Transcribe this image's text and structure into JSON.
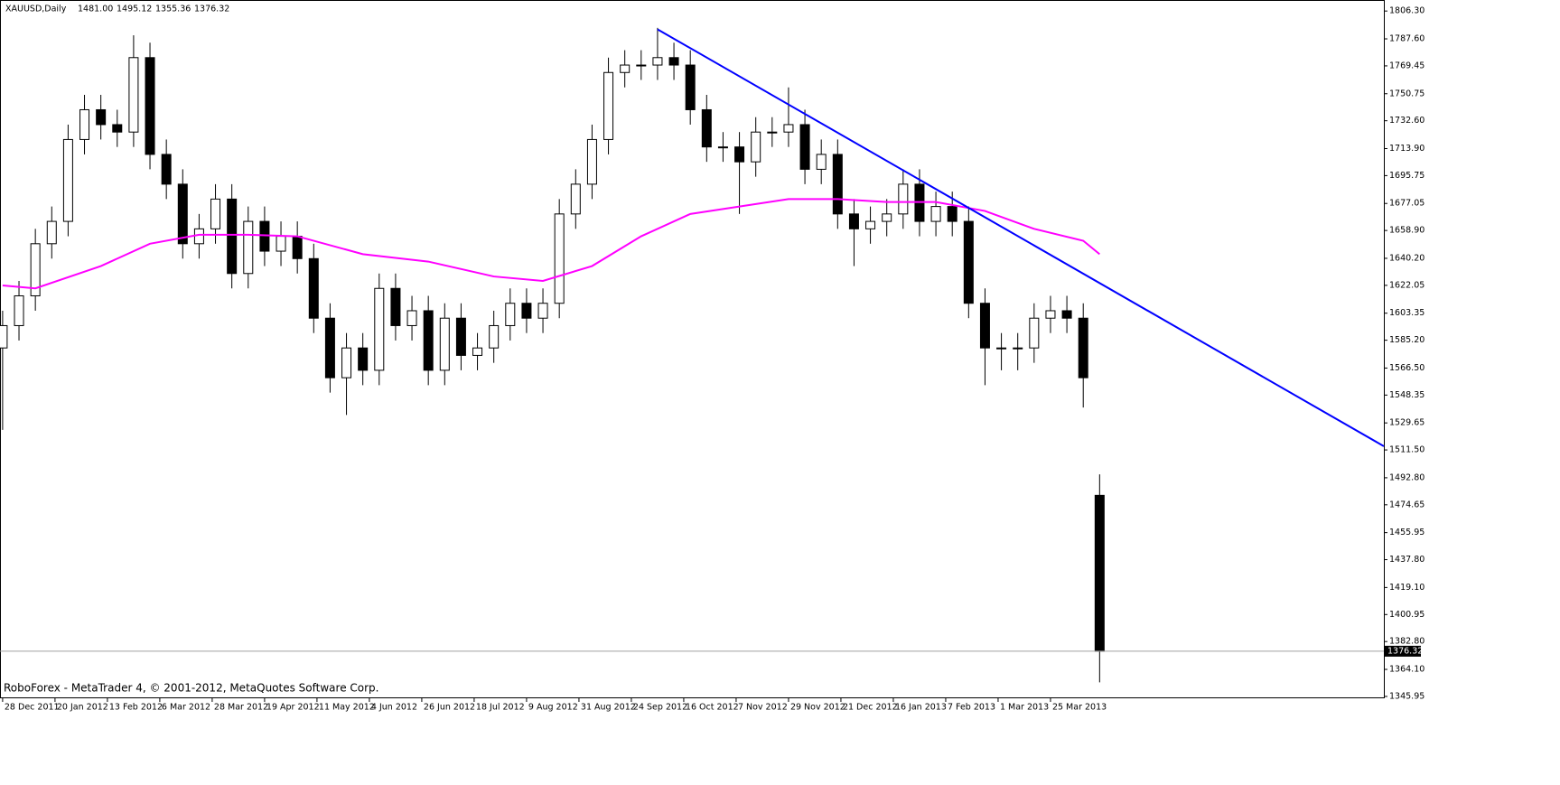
{
  "header": {
    "symbol": "XAUUSD,Daily",
    "values": [
      "1481.00",
      "1495.12",
      "1355.36",
      "1376.32"
    ]
  },
  "footer": "RoboForex - MetaTrader 4, © 2001-2012, MetaQuotes Software Corp.",
  "chart_data": {
    "type": "candlestick",
    "xlim": [
      -0.8,
      421.8
    ],
    "ylim": [
      1344.7,
      1813.7
    ],
    "yticks": [
      {
        "value": 1806.3,
        "label": "1806.30"
      },
      {
        "value": 1787.6,
        "label": "1787.60"
      },
      {
        "value": 1769.45,
        "label": "1769.45"
      },
      {
        "value": 1750.75,
        "label": "1750.75"
      },
      {
        "value": 1732.6,
        "label": "1732.60"
      },
      {
        "value": 1713.9,
        "label": "1713.90"
      },
      {
        "value": 1695.75,
        "label": "1695.75"
      },
      {
        "value": 1677.05,
        "label": "1677.05"
      },
      {
        "value": 1658.9,
        "label": "1658.90"
      },
      {
        "value": 1640.2,
        "label": "1640.20"
      },
      {
        "value": 1622.05,
        "label": "1622.05"
      },
      {
        "value": 1603.35,
        "label": "1603.35"
      },
      {
        "value": 1585.2,
        "label": "1585.20"
      },
      {
        "value": 1566.5,
        "label": "1566.50"
      },
      {
        "value": 1548.35,
        "label": "1548.35"
      },
      {
        "value": 1529.65,
        "label": "1529.65"
      },
      {
        "value": 1511.5,
        "label": "1511.50"
      },
      {
        "value": 1492.8,
        "label": "1492.80"
      },
      {
        "value": 1474.65,
        "label": "1474.65"
      },
      {
        "value": 1455.95,
        "label": "1455.95"
      },
      {
        "value": 1437.8,
        "label": "1437.80"
      },
      {
        "value": 1419.1,
        "label": "1419.10"
      },
      {
        "value": 1400.95,
        "label": "1400.95"
      },
      {
        "value": 1382.8,
        "label": "1382.80"
      },
      {
        "value": 1364.1,
        "label": "1364.10"
      },
      {
        "value": 1345.95,
        "label": "1345.95"
      }
    ],
    "xticks": [
      {
        "value": 0,
        "label": "28 Dec 2011"
      },
      {
        "value": 16,
        "label": "20 Jan 2012"
      },
      {
        "value": 32,
        "label": "13 Feb 2012"
      },
      {
        "value": 48,
        "label": "6 Mar 2012"
      },
      {
        "value": 64,
        "label": "28 Mar 2012"
      },
      {
        "value": 80,
        "label": "19 Apr 2012"
      },
      {
        "value": 96,
        "label": "11 May 2012"
      },
      {
        "value": 112,
        "label": "4 Jun 2012"
      },
      {
        "value": 128,
        "label": "26 Jun 2012"
      },
      {
        "value": 144,
        "label": "18 Jul 2012"
      },
      {
        "value": 160,
        "label": "9 Aug 2012"
      },
      {
        "value": 176,
        "label": "31 Aug 2012"
      },
      {
        "value": 192,
        "label": "24 Sep 2012"
      },
      {
        "value": 208,
        "label": "16 Oct 2012"
      },
      {
        "value": 224,
        "label": "7 Nov 2012"
      },
      {
        "value": 240,
        "label": "29 Nov 2012"
      },
      {
        "value": 256,
        "label": "21 Dec 2012"
      },
      {
        "value": 272,
        "label": "16 Jan 2013"
      },
      {
        "value": 288,
        "label": "7 Feb 2013"
      },
      {
        "value": 304,
        "label": "1 Mar 2013"
      },
      {
        "value": 320,
        "label": "25 Mar 2013"
      }
    ],
    "candles": {
      "x": [
        0,
        5,
        10,
        15,
        20,
        25,
        30,
        35,
        40,
        45,
        50,
        55,
        60,
        65,
        70,
        75,
        80,
        85,
        90,
        95,
        100,
        105,
        110,
        115,
        120,
        125,
        130,
        135,
        140,
        145,
        150,
        155,
        160,
        165,
        170,
        175,
        180,
        185,
        190,
        195,
        200,
        205,
        210,
        215,
        220,
        225,
        230,
        235,
        240,
        245,
        250,
        255,
        260,
        265,
        270,
        275,
        280,
        285,
        290,
        295,
        300,
        305,
        310,
        315,
        320,
        325,
        330,
        335
      ],
      "open": [
        1580,
        1595,
        1615,
        1650,
        1665,
        1720,
        1740,
        1730,
        1725,
        1775,
        1710,
        1690,
        1650,
        1660,
        1680,
        1630,
        1665,
        1645,
        1655,
        1640,
        1600,
        1560,
        1580,
        1565,
        1620,
        1595,
        1605,
        1565,
        1600,
        1575,
        1580,
        1595,
        1610,
        1600,
        1610,
        1670,
        1690,
        1720,
        1765,
        1770,
        1770,
        1775,
        1770,
        1740,
        1715,
        1715,
        1705,
        1725,
        1725,
        1730,
        1700,
        1710,
        1670,
        1660,
        1665,
        1670,
        1690,
        1665,
        1675,
        1665,
        1610,
        1580,
        1580,
        1580,
        1600,
        1605,
        1600,
        1481
      ],
      "high": [
        1605,
        1625,
        1660,
        1675,
        1730,
        1750,
        1750,
        1740,
        1790,
        1785,
        1720,
        1700,
        1670,
        1690,
        1690,
        1675,
        1675,
        1665,
        1665,
        1650,
        1610,
        1590,
        1590,
        1630,
        1630,
        1615,
        1615,
        1610,
        1610,
        1590,
        1605,
        1620,
        1620,
        1620,
        1680,
        1700,
        1730,
        1775,
        1780,
        1780,
        1795,
        1785,
        1780,
        1750,
        1725,
        1725,
        1735,
        1735,
        1755,
        1740,
        1720,
        1720,
        1680,
        1675,
        1680,
        1700,
        1700,
        1685,
        1685,
        1675,
        1620,
        1590,
        1590,
        1610,
        1615,
        1615,
        1610,
        1495.12
      ],
      "low": [
        1525,
        1585,
        1605,
        1640,
        1655,
        1710,
        1720,
        1715,
        1715,
        1700,
        1680,
        1640,
        1640,
        1650,
        1620,
        1620,
        1635,
        1635,
        1630,
        1590,
        1550,
        1535,
        1555,
        1555,
        1585,
        1585,
        1555,
        1555,
        1565,
        1565,
        1570,
        1585,
        1590,
        1590,
        1600,
        1660,
        1680,
        1710,
        1755,
        1760,
        1760,
        1760,
        1730,
        1705,
        1705,
        1670,
        1695,
        1715,
        1715,
        1690,
        1690,
        1660,
        1635,
        1650,
        1655,
        1660,
        1655,
        1655,
        1655,
        1600,
        1555,
        1565,
        1565,
        1570,
        1590,
        1590,
        1540,
        1355.36
      ],
      "close": [
        1595,
        1615,
        1650,
        1665,
        1720,
        1740,
        1730,
        1725,
        1775,
        1710,
        1690,
        1650,
        1660,
        1680,
        1630,
        1665,
        1645,
        1655,
        1640,
        1600,
        1560,
        1580,
        1565,
        1620,
        1595,
        1605,
        1565,
        1600,
        1575,
        1580,
        1595,
        1610,
        1600,
        1610,
        1670,
        1690,
        1720,
        1765,
        1770,
        1770,
        1775,
        1770,
        1740,
        1715,
        1715,
        1705,
        1725,
        1725,
        1730,
        1700,
        1710,
        1670,
        1660,
        1665,
        1670,
        1690,
        1665,
        1675,
        1665,
        1610,
        1580,
        1580,
        1580,
        1600,
        1605,
        1600,
        1560,
        1376.32
      ]
    },
    "ma": {
      "color": "#ff00ff",
      "x": [
        0,
        10,
        30,
        45,
        60,
        75,
        90,
        110,
        130,
        150,
        165,
        180,
        195,
        210,
        225,
        240,
        255,
        270,
        285,
        300,
        315,
        330,
        335
      ],
      "values": [
        1622,
        1620,
        1635,
        1650,
        1656,
        1656,
        1655,
        1643,
        1638,
        1628,
        1625,
        1635,
        1655,
        1670,
        1675,
        1680,
        1680,
        1678,
        1678,
        1672,
        1660,
        1652,
        1643
      ]
    },
    "trendline": {
      "color": "#0000ff",
      "x": [
        200,
        421.8
      ],
      "values": [
        1794,
        1514
      ]
    },
    "last_price": 1376.32
  }
}
